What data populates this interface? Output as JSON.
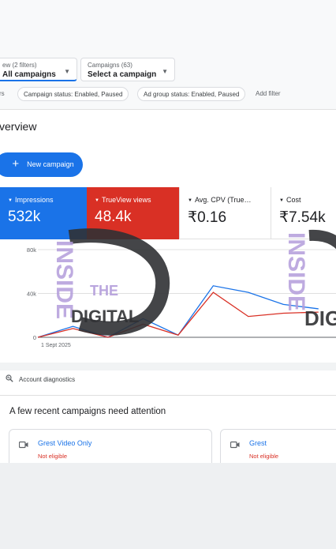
{
  "filters": {
    "view": {
      "label": "ew (2 filters)",
      "value": "All campaigns"
    },
    "campaigns": {
      "label": "Campaigns (63)",
      "value": "Select a campaign"
    },
    "chips": {
      "left_fragment": "rs",
      "campaign_status": "Campaign status: Enabled, Paused",
      "ad_group_status": "Ad group status: Enabled, Paused",
      "add_filter": "Add filter"
    }
  },
  "page_title": "verview",
  "new_campaign_button": "New campaign",
  "metrics": [
    {
      "label": "Impressions",
      "value": "532k",
      "color": "#1a73e8"
    },
    {
      "label": "TrueView views",
      "value": "48.4k",
      "color": "#d93025"
    },
    {
      "label": "Avg. CPV (True…",
      "value": "₹0.16"
    },
    {
      "label": "Cost",
      "value": "₹7.54k"
    }
  ],
  "chart_data": {
    "type": "line",
    "y_ticks": [
      "80k",
      "40k",
      "0"
    ],
    "ylim": [
      0,
      80000
    ],
    "x_start_label": "1 Sept 2025",
    "x": [
      0,
      1,
      2,
      3,
      4,
      5,
      6,
      7,
      8
    ],
    "series": [
      {
        "color": "#1a73e8",
        "values": [
          0,
          10000,
          0,
          17000,
          2000,
          47000,
          41000,
          30000,
          26000
        ]
      },
      {
        "color": "#d93025",
        "values": [
          0,
          8000,
          0,
          12000,
          2000,
          41000,
          19000,
          22000,
          23000
        ]
      }
    ]
  },
  "account_diagnostics": "Account diagnostics",
  "attention_heading": "A few recent campaigns need attention",
  "campaign_cards": [
    {
      "name": "Grest Video Only",
      "status": "Not eligible"
    },
    {
      "name": "Grest",
      "status": "Not eligible"
    }
  ],
  "watermark": {
    "line1": "INSIDE",
    "line2": "THE",
    "line3": "DIGITAL",
    "color": "#b39ddb"
  },
  "icons": [
    "chevron-down-icon",
    "plus-icon",
    "diagnostics-icon",
    "video-campaign-icon"
  ]
}
